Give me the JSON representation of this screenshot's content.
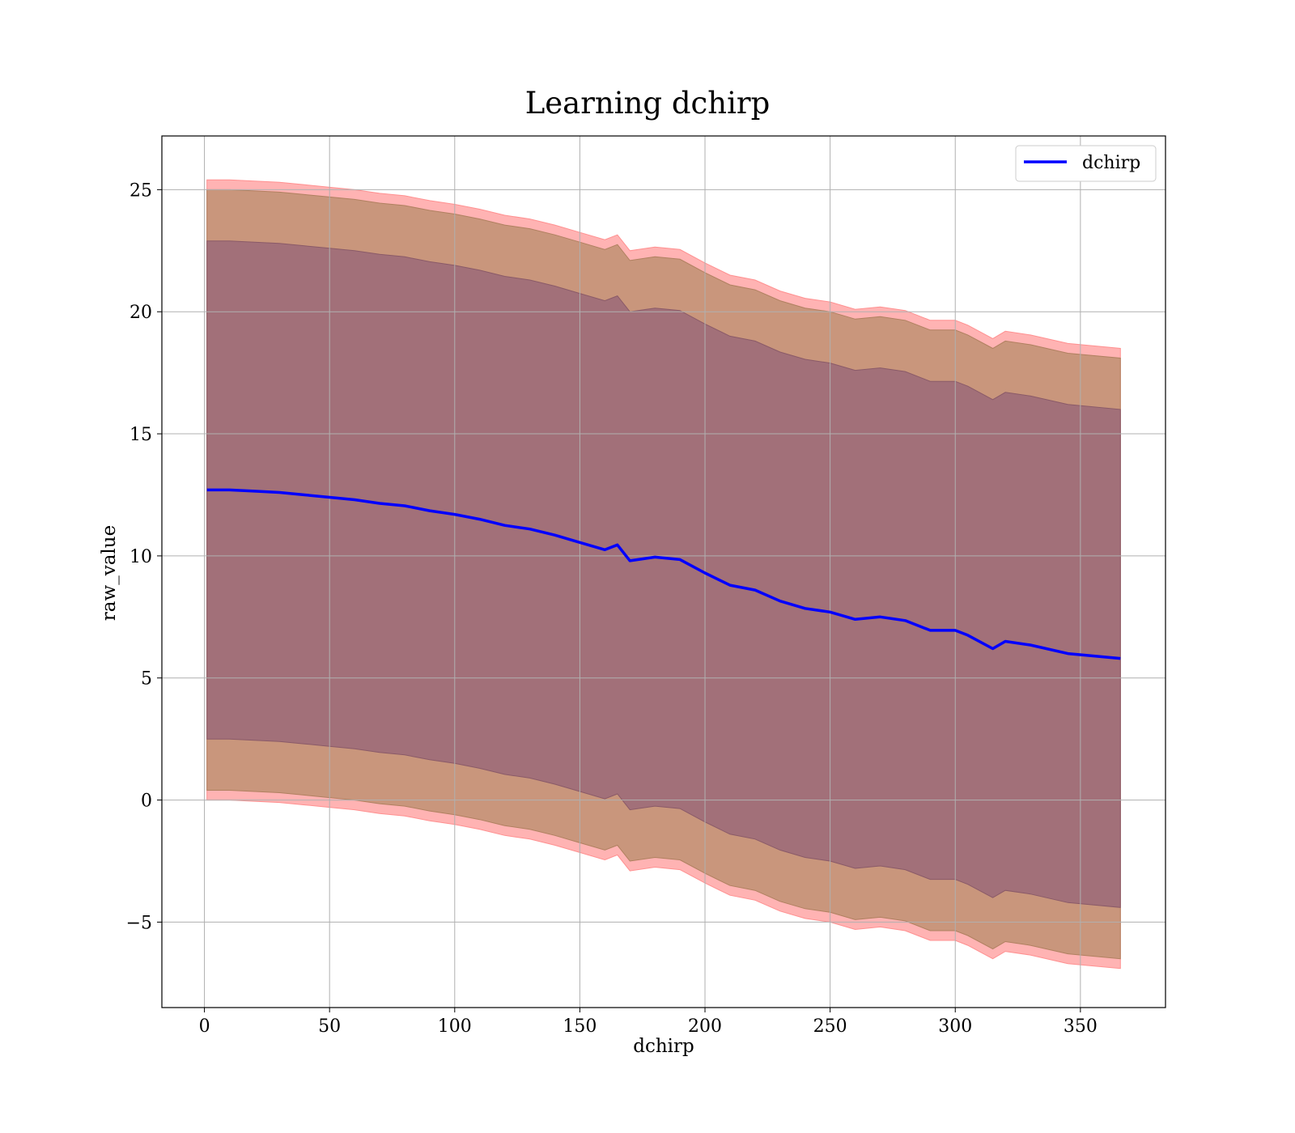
{
  "chart_data": {
    "type": "line",
    "title": "Learning dchirp",
    "xlabel": "dchirp",
    "ylabel": "raw_value",
    "xlim": [
      -17,
      384
    ],
    "ylim": [
      -8.5,
      27.2
    ],
    "xticks": [
      0,
      50,
      100,
      150,
      200,
      250,
      300,
      350
    ],
    "xtick_labels": [
      "0",
      "50",
      "100",
      "150",
      "200",
      "250",
      "300",
      "350"
    ],
    "yticks": [
      -5,
      0,
      5,
      10,
      15,
      20,
      25
    ],
    "ytick_labels": [
      "−5",
      "0",
      "5",
      "10",
      "15",
      "20",
      "25"
    ],
    "grid": true,
    "legend": {
      "position": "top-right",
      "entries": [
        "dchirp"
      ]
    },
    "colors": {
      "line": "#0000ff",
      "outer_band": "#ffb3b3",
      "middle_band": "#c9967c",
      "inner_band": "#a27079",
      "grid": "#b0b0b0"
    },
    "x": [
      1,
      10,
      20,
      30,
      40,
      50,
      60,
      70,
      80,
      90,
      100,
      110,
      120,
      130,
      140,
      150,
      160,
      165,
      170,
      180,
      190,
      200,
      210,
      220,
      230,
      240,
      250,
      260,
      270,
      280,
      290,
      300,
      305,
      315,
      320,
      330,
      345,
      366
    ],
    "series": [
      {
        "name": "dchirp",
        "values": [
          12.7,
          12.7,
          12.65,
          12.6,
          12.5,
          12.4,
          12.3,
          12.15,
          12.05,
          11.85,
          11.7,
          11.5,
          11.25,
          11.1,
          10.85,
          10.55,
          10.25,
          10.45,
          9.8,
          9.95,
          9.85,
          9.3,
          8.8,
          8.6,
          8.15,
          7.85,
          7.7,
          7.4,
          7.5,
          7.35,
          6.95,
          6.95,
          6.75,
          6.2,
          6.5,
          6.35,
          6.0,
          5.8
        ]
      }
    ],
    "bands": [
      {
        "upper": [
          25.4,
          25.4,
          25.35,
          25.3,
          25.2,
          25.1,
          25.0,
          24.85,
          24.75,
          24.55,
          24.4,
          24.2,
          23.95,
          23.8,
          23.55,
          23.25,
          22.95,
          23.15,
          22.5,
          22.65,
          22.55,
          22.0,
          21.5,
          21.3,
          20.85,
          20.55,
          20.4,
          20.1,
          20.2,
          20.05,
          19.65,
          19.65,
          19.45,
          18.9,
          19.2,
          19.05,
          18.7,
          18.5
        ],
        "lower": [
          0.0,
          0.0,
          -0.05,
          -0.1,
          -0.2,
          -0.3,
          -0.4,
          -0.55,
          -0.65,
          -0.85,
          -1.0,
          -1.2,
          -1.45,
          -1.6,
          -1.85,
          -2.15,
          -2.45,
          -2.25,
          -2.9,
          -2.75,
          -2.85,
          -3.4,
          -3.9,
          -4.1,
          -4.55,
          -4.85,
          -5.0,
          -5.3,
          -5.2,
          -5.35,
          -5.75,
          -5.75,
          -5.95,
          -6.5,
          -6.2,
          -6.35,
          -6.7,
          -6.9
        ]
      },
      {
        "upper": [
          25.0,
          25.0,
          24.95,
          24.9,
          24.8,
          24.7,
          24.6,
          24.45,
          24.35,
          24.15,
          24.0,
          23.8,
          23.55,
          23.4,
          23.15,
          22.85,
          22.55,
          22.75,
          22.1,
          22.25,
          22.15,
          21.6,
          21.1,
          20.9,
          20.45,
          20.15,
          20.0,
          19.7,
          19.8,
          19.65,
          19.25,
          19.25,
          19.05,
          18.5,
          18.8,
          18.65,
          18.3,
          18.1
        ],
        "lower": [
          0.4,
          0.4,
          0.35,
          0.3,
          0.2,
          0.1,
          0.0,
          -0.15,
          -0.25,
          -0.45,
          -0.6,
          -0.8,
          -1.05,
          -1.2,
          -1.45,
          -1.75,
          -2.05,
          -1.85,
          -2.5,
          -2.35,
          -2.45,
          -3.0,
          -3.5,
          -3.7,
          -4.15,
          -4.45,
          -4.6,
          -4.9,
          -4.8,
          -4.95,
          -5.35,
          -5.35,
          -5.55,
          -6.1,
          -5.8,
          -5.95,
          -6.3,
          -6.5
        ]
      },
      {
        "upper": [
          22.9,
          22.9,
          22.85,
          22.8,
          22.7,
          22.6,
          22.5,
          22.35,
          22.25,
          22.05,
          21.9,
          21.7,
          21.45,
          21.3,
          21.05,
          20.75,
          20.45,
          20.65,
          20.0,
          20.15,
          20.05,
          19.5,
          19.0,
          18.8,
          18.35,
          18.05,
          17.9,
          17.6,
          17.7,
          17.55,
          17.15,
          17.15,
          16.95,
          16.4,
          16.7,
          16.55,
          16.2,
          16.0
        ],
        "lower": [
          2.5,
          2.5,
          2.45,
          2.4,
          2.3,
          2.2,
          2.1,
          1.95,
          1.85,
          1.65,
          1.5,
          1.3,
          1.05,
          0.9,
          0.65,
          0.35,
          0.05,
          0.25,
          -0.4,
          -0.25,
          -0.35,
          -0.9,
          -1.4,
          -1.6,
          -2.05,
          -2.35,
          -2.5,
          -2.8,
          -2.7,
          -2.85,
          -3.25,
          -3.25,
          -3.45,
          -4.0,
          -3.7,
          -3.85,
          -4.2,
          -4.4
        ]
      }
    ]
  }
}
